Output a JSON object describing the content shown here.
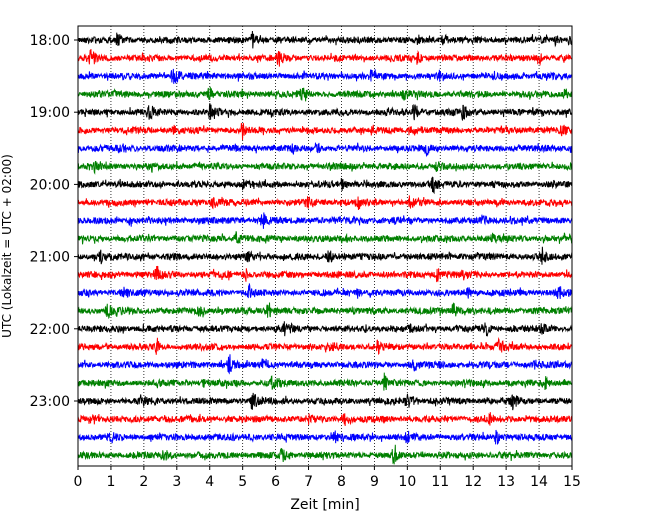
{
  "chart_data": {
    "type": "line",
    "subtype": "helicorder",
    "xlabel": "Zeit  [min]",
    "ylabel": "UTC (Lokalzeit = UTC + 02:00)",
    "xlim": [
      0,
      15
    ],
    "x_ticks": [
      "0",
      "1",
      "2",
      "3",
      "4",
      "5",
      "6",
      "7",
      "8",
      "9",
      "10",
      "11",
      "12",
      "13",
      "14",
      "15"
    ],
    "y_tick_labels": [
      "18:00",
      "19:00",
      "20:00",
      "21:00",
      "22:00",
      "23:00"
    ],
    "grid": "vertical-dotted",
    "trace_minutes": 15,
    "trace_colors": [
      "#000000",
      "#ff0000",
      "#0000ff",
      "#008000"
    ],
    "traces": [
      {
        "start": "18:00",
        "color": "#000000",
        "events_min": [
          1.2,
          5.3,
          11.1,
          14.5,
          14.9
        ]
      },
      {
        "start": "18:15",
        "color": "#ff0000",
        "events_min": [
          0.4,
          6.1,
          10.3,
          14.0
        ]
      },
      {
        "start": "18:30",
        "color": "#0000ff",
        "events_min": [
          2.9,
          8.9,
          11.0,
          13.3
        ]
      },
      {
        "start": "18:45",
        "color": "#008000",
        "events_min": [
          4.0,
          6.8,
          9.9,
          14.8
        ]
      },
      {
        "start": "19:00",
        "color": "#000000",
        "events_min": [
          2.2,
          4.0,
          10.2,
          11.7
        ]
      },
      {
        "start": "19:15",
        "color": "#ff0000",
        "events_min": [
          2.9,
          5.0,
          10.1,
          14.7
        ]
      },
      {
        "start": "19:30",
        "color": "#0000ff",
        "events_min": [
          1.3,
          6.5,
          7.3,
          10.6
        ]
      },
      {
        "start": "19:45",
        "color": "#008000",
        "events_min": [
          0.5,
          10.9,
          11.1
        ]
      },
      {
        "start": "20:00",
        "color": "#000000",
        "events_min": [
          5.0,
          8.0,
          10.8
        ]
      },
      {
        "start": "20:15",
        "color": "#ff0000",
        "events_min": [
          4.1,
          7.0,
          8.5,
          10.1
        ]
      },
      {
        "start": "20:30",
        "color": "#0000ff",
        "events_min": [
          1.6,
          5.6,
          12.3
        ]
      },
      {
        "start": "20:45",
        "color": "#008000",
        "events_min": [
          4.8,
          8.2,
          12.6
        ]
      },
      {
        "start": "21:00",
        "color": "#000000",
        "events_min": [
          0.7,
          5.1,
          7.6,
          14.1
        ]
      },
      {
        "start": "21:15",
        "color": "#ff0000",
        "events_min": [
          2.4,
          5.1,
          10.9,
          11.7
        ]
      },
      {
        "start": "21:30",
        "color": "#0000ff",
        "events_min": [
          1.4,
          5.2,
          8.5,
          11.8,
          14.6
        ]
      },
      {
        "start": "21:45",
        "color": "#008000",
        "events_min": [
          0.9,
          3.7,
          5.8,
          11.4
        ]
      },
      {
        "start": "22:00",
        "color": "#000000",
        "events_min": [
          6.3,
          10.1,
          12.4,
          14.1
        ]
      },
      {
        "start": "22:15",
        "color": "#ff0000",
        "events_min": [
          2.4,
          7.7,
          9.1,
          12.8
        ]
      },
      {
        "start": "22:30",
        "color": "#0000ff",
        "events_min": [
          4.6,
          5.6,
          10.2,
          13.9
        ]
      },
      {
        "start": "22:45",
        "color": "#008000",
        "events_min": [
          3.8,
          5.9,
          9.3,
          14.2
        ]
      },
      {
        "start": "23:00",
        "color": "#000000",
        "events_min": [
          1.9,
          5.3,
          10.0,
          13.2
        ]
      },
      {
        "start": "23:15",
        "color": "#ff0000",
        "events_min": [
          0.5,
          7.0,
          8.1,
          12.5
        ]
      },
      {
        "start": "23:30",
        "color": "#0000ff",
        "events_min": [
          1.0,
          7.8,
          10.0,
          12.7
        ]
      },
      {
        "start": "23:45",
        "color": "#008000",
        "events_min": [
          2.6,
          6.2,
          9.6
        ]
      }
    ]
  }
}
